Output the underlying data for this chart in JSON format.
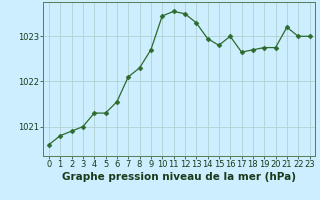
{
  "x": [
    0,
    1,
    2,
    3,
    4,
    5,
    6,
    7,
    8,
    9,
    10,
    11,
    12,
    13,
    14,
    15,
    16,
    17,
    18,
    19,
    20,
    21,
    22,
    23
  ],
  "y": [
    1020.6,
    1020.8,
    1020.9,
    1021.0,
    1021.3,
    1021.3,
    1021.55,
    1022.1,
    1022.3,
    1022.7,
    1023.45,
    1023.55,
    1023.5,
    1023.3,
    1022.95,
    1022.8,
    1023.0,
    1022.65,
    1022.7,
    1022.75,
    1022.75,
    1023.2,
    1023.0,
    1023.0
  ],
  "line_color": "#2d6a2d",
  "marker": "D",
  "marker_size": 2.5,
  "background_color": "#cceeff",
  "grid_color": "#aacccc",
  "xlabel": "Graphe pression niveau de la mer (hPa)",
  "xlabel_color": "#1a3a1a",
  "xlabel_fontsize": 7.5,
  "tick_color": "#1a3a1a",
  "tick_fontsize": 6,
  "ylim": [
    1020.35,
    1023.75
  ],
  "yticks": [
    1021,
    1022,
    1023
  ],
  "xlim": [
    -0.5,
    23.5
  ],
  "xticks": [
    0,
    1,
    2,
    3,
    4,
    5,
    6,
    7,
    8,
    9,
    10,
    11,
    12,
    13,
    14,
    15,
    16,
    17,
    18,
    19,
    20,
    21,
    22,
    23
  ],
  "spine_color": "#5a7a5a",
  "fig_width": 3.2,
  "fig_height": 2.0,
  "dpi": 100
}
